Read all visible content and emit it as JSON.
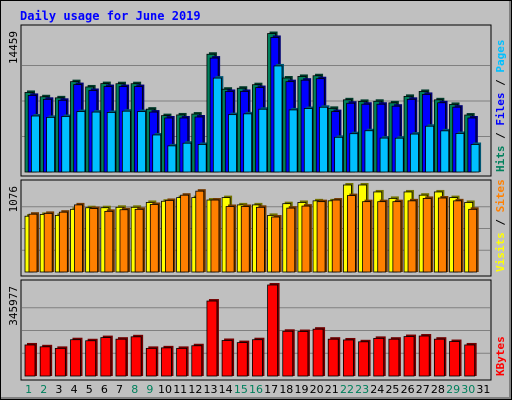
{
  "colors": {
    "background": "#c0c0c0",
    "frame": "#000000",
    "title": "#0000ff",
    "hits": "#00805c",
    "files": "#0000ff",
    "pages": "#00c0ff",
    "visits": "#ffff00",
    "sites": "#ff8000",
    "kbytes": "#ff0000",
    "weekday_label": "#000000",
    "weekend_label": "#00805c"
  },
  "chart_data": {
    "type": "bar",
    "title": "Daily usage for June 2019",
    "categories": [
      "1",
      "2",
      "3",
      "4",
      "5",
      "6",
      "7",
      "8",
      "9",
      "10",
      "11",
      "12",
      "13",
      "14",
      "15",
      "16",
      "17",
      "18",
      "19",
      "20",
      "21",
      "22",
      "23",
      "24",
      "25",
      "26",
      "27",
      "28",
      "29",
      "30",
      "31"
    ],
    "weekend_days": [
      "1",
      "2",
      "8",
      "9",
      "15",
      "16",
      "22",
      "23",
      "29",
      "30"
    ],
    "panels": [
      {
        "name": "hits-files-pages",
        "ymax_label": "14459",
        "ylim": [
          0,
          14459
        ],
        "grid": true,
        "side_label": [
          {
            "text": "Hits",
            "color_key": "hits"
          },
          {
            "text": " / ",
            "color_key": "frame"
          },
          {
            "text": "Files",
            "color_key": "files"
          },
          {
            "text": " / ",
            "color_key": "frame"
          },
          {
            "text": "Pages",
            "color_key": "pages"
          }
        ],
        "series": [
          {
            "name": "Hits",
            "color_key": "hits",
            "values": [
              8100,
              7660,
              7550,
              9200,
              8660,
              9000,
              8990,
              8990,
              6400,
              5740,
              5810,
              5900,
              11990,
              8430,
              8530,
              8890,
              14100,
              9570,
              9730,
              9800,
              6480,
              7350,
              7190,
              7200,
              7040,
              7700,
              8200,
              7350,
              6880,
              5800,
              0
            ]
          },
          {
            "name": "Files",
            "color_key": "files",
            "values": [
              7800,
              7400,
              7300,
              8900,
              8300,
              8700,
              8700,
              8700,
              6100,
              5500,
              5500,
              5600,
              11600,
              8200,
              8200,
              8600,
              13700,
              9200,
              9350,
              9500,
              6150,
              7000,
              6900,
              6900,
              6700,
              7400,
              7900,
              7050,
              6600,
              5500,
              0
            ]
          },
          {
            "name": "Pages",
            "color_key": "pages",
            "values": [
              5700,
              5560,
              5650,
              6150,
              6100,
              6060,
              6190,
              6150,
              3770,
              2660,
              2930,
              2800,
              9560,
              5840,
              5920,
              6390,
              10800,
              6320,
              6460,
              6590,
              3530,
              3900,
              4200,
              3450,
              3440,
              3860,
              4660,
              4190,
              3920,
              2800,
              0
            ]
          }
        ]
      },
      {
        "name": "visits-sites",
        "ymax_label": "1076",
        "ylim": [
          0,
          1076
        ],
        "grid": true,
        "side_label": [
          {
            "text": "Visits",
            "color_key": "visits"
          },
          {
            "text": " / ",
            "color_key": "frame"
          },
          {
            "text": "Sites",
            "color_key": "sites"
          }
        ],
        "series": [
          {
            "name": "Visits",
            "color_key": "visits",
            "values": [
              690,
              712,
              700,
              775,
              795,
              795,
              800,
              800,
              860,
              875,
              920,
              920,
              890,
              920,
              830,
              830,
              700,
              845,
              860,
              880,
              880,
              1076,
              1076,
              990,
              910,
              990,
              950,
              990,
              920,
              860,
              0
            ]
          },
          {
            "name": "Sites",
            "color_key": "sites",
            "values": [
              715,
              725,
              740,
              830,
              785,
              750,
              770,
              775,
              835,
              885,
              950,
              1000,
              890,
              810,
              810,
              800,
              680,
              790,
              815,
              870,
              890,
              945,
              870,
              870,
              870,
              880,
              910,
              915,
              880,
              775,
              0
            ]
          }
        ]
      },
      {
        "name": "kbytes",
        "ymax_label": "345977",
        "ylim": [
          0,
          345977
        ],
        "grid": true,
        "side_label": [
          {
            "text": "KBytes",
            "color_key": "kbytes"
          }
        ],
        "series": [
          {
            "name": "KBytes",
            "color_key": "kbytes",
            "values": [
              118000,
              111000,
              105000,
              138000,
              134000,
              146000,
              140000,
              149000,
              105000,
              107000,
              105000,
              115000,
              285000,
              135000,
              127000,
              138000,
              345977,
              170000,
              169000,
              178000,
              140000,
              137000,
              130000,
              143000,
              140000,
              150000,
              152000,
              140000,
              131000,
              118000,
              0
            ]
          }
        ]
      }
    ]
  }
}
